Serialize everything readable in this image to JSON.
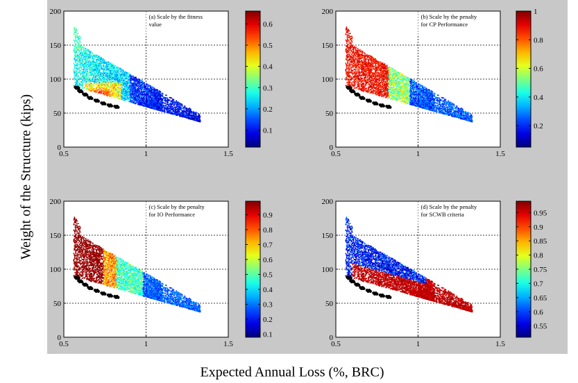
{
  "figure": {
    "ylabel": "Weight of the Structure (kips)",
    "xlabel": "Expected Annual Loss (%, BRC)"
  },
  "chart_data": [
    {
      "type": "scatter",
      "panel": "a",
      "annotation": [
        "(a) Scale by the fitness",
        "value"
      ],
      "xlim": [
        0.5,
        1.5
      ],
      "ylim": [
        0,
        200
      ],
      "xticks": [
        "0.5",
        "1",
        "1.5"
      ],
      "yticks": [
        "0",
        "50",
        "100",
        "150",
        "200"
      ],
      "grid": "dotted",
      "colorbar": {
        "range": [
          0.02,
          0.66
        ],
        "ticks": [
          "0.1",
          "0.2",
          "0.3",
          "0.4",
          "0.5",
          "0.6"
        ],
        "colormap": "jet"
      },
      "color_pattern": "fitness",
      "front": [
        [
          0.58,
          88
        ],
        [
          0.6,
          83
        ],
        [
          0.63,
          78
        ],
        [
          0.66,
          73
        ],
        [
          0.7,
          69
        ],
        [
          0.74,
          65
        ],
        [
          0.78,
          62
        ],
        [
          0.82,
          60
        ]
      ]
    },
    {
      "type": "scatter",
      "panel": "b",
      "annotation": [
        "(b) Scale by the penalty",
        "for CP Performance"
      ],
      "xlim": [
        0.5,
        1.5
      ],
      "ylim": [
        0,
        200
      ],
      "xticks": [
        "0.5",
        "1",
        "1.5"
      ],
      "yticks": [
        "0",
        "50",
        "100",
        "150",
        "200"
      ],
      "grid": "dotted",
      "colorbar": {
        "range": [
          0.05,
          1.0
        ],
        "ticks": [
          "0.2",
          "0.4",
          "0.6",
          "0.8",
          "1"
        ],
        "colormap": "jet"
      },
      "color_pattern": "cp",
      "front": [
        [
          0.58,
          88
        ],
        [
          0.6,
          83
        ],
        [
          0.63,
          78
        ],
        [
          0.66,
          73
        ],
        [
          0.7,
          69
        ],
        [
          0.74,
          65
        ],
        [
          0.78,
          62
        ],
        [
          0.82,
          60
        ]
      ]
    },
    {
      "type": "scatter",
      "panel": "c",
      "annotation": [
        "(c) Scale by the penalty",
        "for IO Performance"
      ],
      "xlim": [
        0.5,
        1.5
      ],
      "ylim": [
        0,
        200
      ],
      "xticks": [
        "0.5",
        "1",
        "1.5"
      ],
      "yticks": [
        "0",
        "50",
        "100",
        "150",
        "200"
      ],
      "grid": "dotted",
      "colorbar": {
        "range": [
          0.08,
          0.99
        ],
        "ticks": [
          "0.1",
          "0.2",
          "0.3",
          "0.4",
          "0.5",
          "0.6",
          "0.7",
          "0.8",
          "0.9"
        ],
        "colormap": "jet"
      },
      "color_pattern": "io",
      "front": [
        [
          0.58,
          88
        ],
        [
          0.6,
          83
        ],
        [
          0.63,
          78
        ],
        [
          0.66,
          73
        ],
        [
          0.7,
          69
        ],
        [
          0.74,
          65
        ],
        [
          0.78,
          62
        ],
        [
          0.82,
          60
        ]
      ]
    },
    {
      "type": "scatter",
      "panel": "d",
      "annotation": [
        "(d) Scale by the penalty",
        "for SCWB criteria"
      ],
      "xlim": [
        0.5,
        1.5
      ],
      "ylim": [
        0,
        200
      ],
      "xticks": [
        "0.5",
        "1",
        "1.5"
      ],
      "yticks": [
        "0",
        "50",
        "100",
        "150",
        "200"
      ],
      "grid": "dotted",
      "colorbar": {
        "range": [
          0.51,
          0.99
        ],
        "ticks": [
          "0.55",
          "0.6",
          "0.65",
          "0.7",
          "0.75",
          "0.8",
          "0.85",
          "0.9",
          "0.95"
        ],
        "colormap": "jet"
      },
      "color_pattern": "scwb",
      "front": [
        [
          0.58,
          88
        ],
        [
          0.6,
          83
        ],
        [
          0.63,
          78
        ],
        [
          0.66,
          73
        ],
        [
          0.7,
          69
        ],
        [
          0.74,
          65
        ],
        [
          0.78,
          62
        ],
        [
          0.82,
          60
        ]
      ]
    }
  ]
}
